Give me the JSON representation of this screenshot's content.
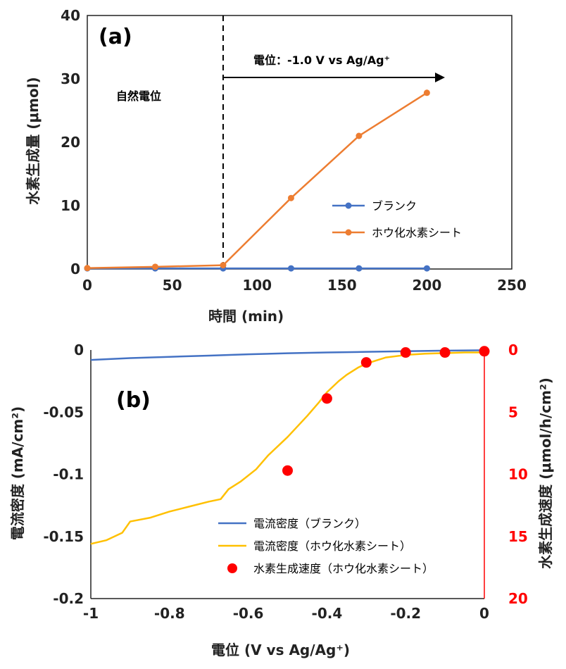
{
  "colors": {
    "blank": "#4472c4",
    "boride": "#ed7d31",
    "current_boride": "#ffc000",
    "rate": "#ff0000",
    "axis": "#222222"
  },
  "chart_data": [
    {
      "type": "line",
      "panel_label": "(a)",
      "xlabel": "時間 (min)",
      "ylabel": "水素生成量 (μmol)",
      "xlim": [
        0,
        250
      ],
      "ylim": [
        0,
        40
      ],
      "xticks": [
        "0",
        "50",
        "100",
        "150",
        "200",
        "250"
      ],
      "yticks": [
        "0",
        "10",
        "20",
        "30",
        "40"
      ],
      "annotations": {
        "region1": "自然電位",
        "region2": "電位：-1.0 V vs Ag/Ag⁺",
        "divider_x": 80
      },
      "legend_position": "right",
      "series": [
        {
          "name": "ブランク",
          "x": [
            0,
            40,
            80,
            120,
            160,
            200
          ],
          "y": [
            0.1,
            0.1,
            0.1,
            0.1,
            0.1,
            0.1
          ]
        },
        {
          "name": "ホウ化水素シート",
          "x": [
            0,
            40,
            80,
            120,
            160,
            200
          ],
          "y": [
            0.15,
            0.35,
            0.6,
            11.2,
            21.0,
            27.8
          ]
        }
      ]
    },
    {
      "type": "line",
      "panel_label": "(b)",
      "xlabel": "電位 (V vs Ag/Ag⁺)",
      "ylabel": "電流密度 (mA/cm²)",
      "y2label": "水素生成速度 (μmol/h/cm²)",
      "xlim": [
        -1,
        0
      ],
      "ylim": [
        -0.2,
        0
      ],
      "y2lim": [
        20,
        0
      ],
      "xticks": [
        "-1",
        "-0.8",
        "-0.6",
        "-0.4",
        "-0.2",
        "0"
      ],
      "yticks": [
        "0",
        "-0.05",
        "-0.1",
        "-0.15",
        "-0.2"
      ],
      "y2ticks": [
        "0",
        "5",
        "10",
        "15",
        "20"
      ],
      "legend_position": "bottom-center",
      "series": [
        {
          "name": "電流密度（ブランク）",
          "axis": "left",
          "x": [
            -1,
            -0.9,
            -0.8,
            -0.7,
            -0.6,
            -0.5,
            -0.4,
            -0.3,
            -0.2,
            -0.1,
            0
          ],
          "y": [
            -0.008,
            -0.0065,
            -0.0055,
            -0.0045,
            -0.0035,
            -0.0026,
            -0.002,
            -0.0015,
            -0.001,
            -0.0005,
            -0.0002
          ]
        },
        {
          "name": "電流密度（ホウ化水素シート）",
          "axis": "left",
          "x": [
            -1,
            -0.96,
            -0.92,
            -0.9,
            -0.85,
            -0.8,
            -0.75,
            -0.7,
            -0.67,
            -0.65,
            -0.62,
            -0.58,
            -0.55,
            -0.5,
            -0.45,
            -0.42,
            -0.4,
            -0.37,
            -0.35,
            -0.32,
            -0.3,
            -0.27,
            -0.25,
            -0.2,
            -0.15,
            -0.1,
            -0.05,
            0
          ],
          "y": [
            -0.156,
            -0.153,
            -0.147,
            -0.138,
            -0.135,
            -0.13,
            -0.126,
            -0.122,
            -0.12,
            -0.112,
            -0.106,
            -0.096,
            -0.085,
            -0.07,
            -0.053,
            -0.042,
            -0.034,
            -0.025,
            -0.02,
            -0.014,
            -0.011,
            -0.008,
            -0.006,
            -0.004,
            -0.003,
            -0.0025,
            -0.002,
            -0.002
          ]
        },
        {
          "name": "水素生成速度（ホウ化水素シート）",
          "axis": "right",
          "type": "scatter",
          "x": [
            -0.5,
            -0.4,
            -0.3,
            -0.2,
            -0.1,
            0
          ],
          "y": [
            9.7,
            3.9,
            1.0,
            0.2,
            0.2,
            0.1
          ]
        }
      ]
    }
  ]
}
